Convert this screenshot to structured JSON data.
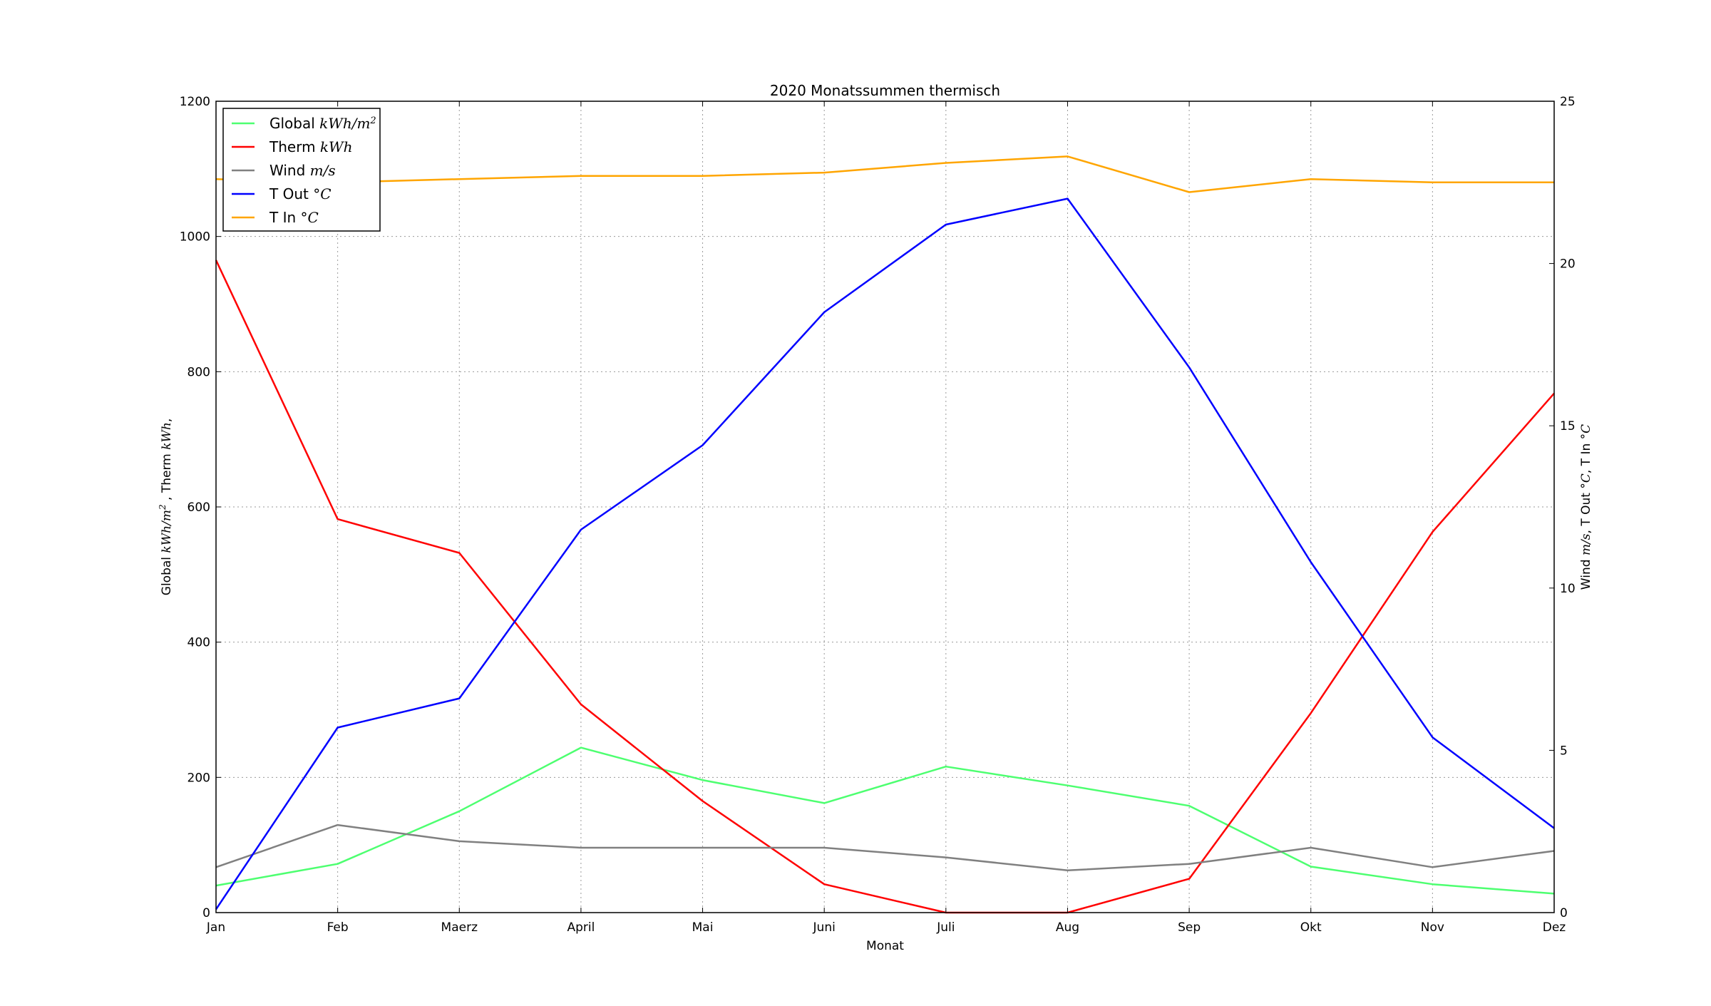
{
  "chart_data": {
    "type": "line",
    "title": "2020 Monatssummen thermisch",
    "xlabel": "Monat",
    "ylabel_left": {
      "prefix": "Global ",
      "unit1": "kWh/m",
      "sup1": "2",
      "mid": " , Therm ",
      "unit2": "kWh",
      "suffix": ","
    },
    "ylabel_right": {
      "prefix": "Wind ",
      "unit1": "m/s",
      "mid1": ", T Out ",
      "unit2": "°C",
      "mid2": ", T In ",
      "unit3": "°C"
    },
    "categories": [
      "Jan",
      "Feb",
      "Maerz",
      "April",
      "Mai",
      "Juni",
      "Juli",
      "Aug",
      "Sep",
      "Okt",
      "Nov",
      "Dez"
    ],
    "ylim_left": [
      0,
      1200
    ],
    "yticks_left": [
      "0",
      "200",
      "400",
      "600",
      "800",
      "1000",
      "1200"
    ],
    "ylim_right": [
      0,
      25
    ],
    "yticks_right": [
      "0",
      "5",
      "10",
      "15",
      "20",
      "25"
    ],
    "grid": true,
    "legend_placement": "top-left",
    "series": [
      {
        "name": "Global",
        "unit": "kWh/m",
        "sup": "2",
        "axis": "left",
        "color": "#4dff70",
        "values": [
          40,
          72,
          150,
          244,
          196,
          162,
          216,
          188,
          158,
          68,
          42,
          28
        ]
      },
      {
        "name": "Therm",
        "unit": "kWh",
        "sup": "",
        "axis": "left",
        "color": "#ff0000",
        "values": [
          965,
          582,
          532,
          308,
          165,
          42,
          0,
          0,
          50,
          295,
          563,
          768
        ]
      },
      {
        "name": "Wind",
        "unit": "m/s",
        "sup": "",
        "axis": "right",
        "color": "#808080",
        "values": [
          1.4,
          2.7,
          2.2,
          2.0,
          2.0,
          2.0,
          1.7,
          1.3,
          1.5,
          2.0,
          1.4,
          1.9
        ]
      },
      {
        "name": "T Out",
        "unit": "°C",
        "sup": "",
        "axis": "right",
        "color": "#0000ff",
        "values": [
          0.1,
          5.7,
          6.6,
          11.8,
          14.4,
          18.5,
          21.2,
          22.0,
          16.8,
          10.8,
          5.4,
          2.6
        ]
      },
      {
        "name": "T In",
        "unit": "°C",
        "sup": "",
        "axis": "right",
        "color": "#ffa500",
        "values": [
          22.6,
          22.5,
          22.6,
          22.7,
          22.7,
          22.8,
          23.1,
          23.3,
          22.2,
          22.6,
          22.5,
          22.5
        ]
      }
    ]
  }
}
